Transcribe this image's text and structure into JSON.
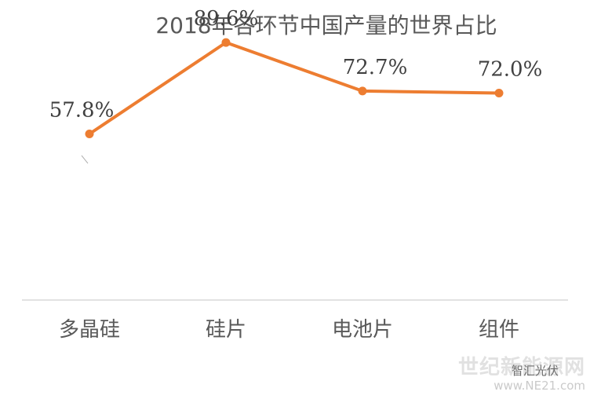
{
  "chart_data": {
    "type": "line",
    "title": "2018年各环节中国产量的世界占比",
    "categories": [
      "多晶硅",
      "硅片",
      "电池片",
      "组件"
    ],
    "series": [
      {
        "values": [
          57.8,
          89.6,
          72.7,
          72.0
        ],
        "data_labels": [
          "57.8%",
          "89.6%",
          "72.7%",
          "72.0%"
        ]
      }
    ],
    "ylim": [
      0,
      100
    ],
    "grid": false,
    "legend": "none",
    "line_color": "#ED7D31",
    "axis_color": "#D9D9D9"
  },
  "watermark": {
    "main": "世纪新能源网",
    "sub": "www.NE21.com",
    "overlay": "智汇光伏"
  }
}
